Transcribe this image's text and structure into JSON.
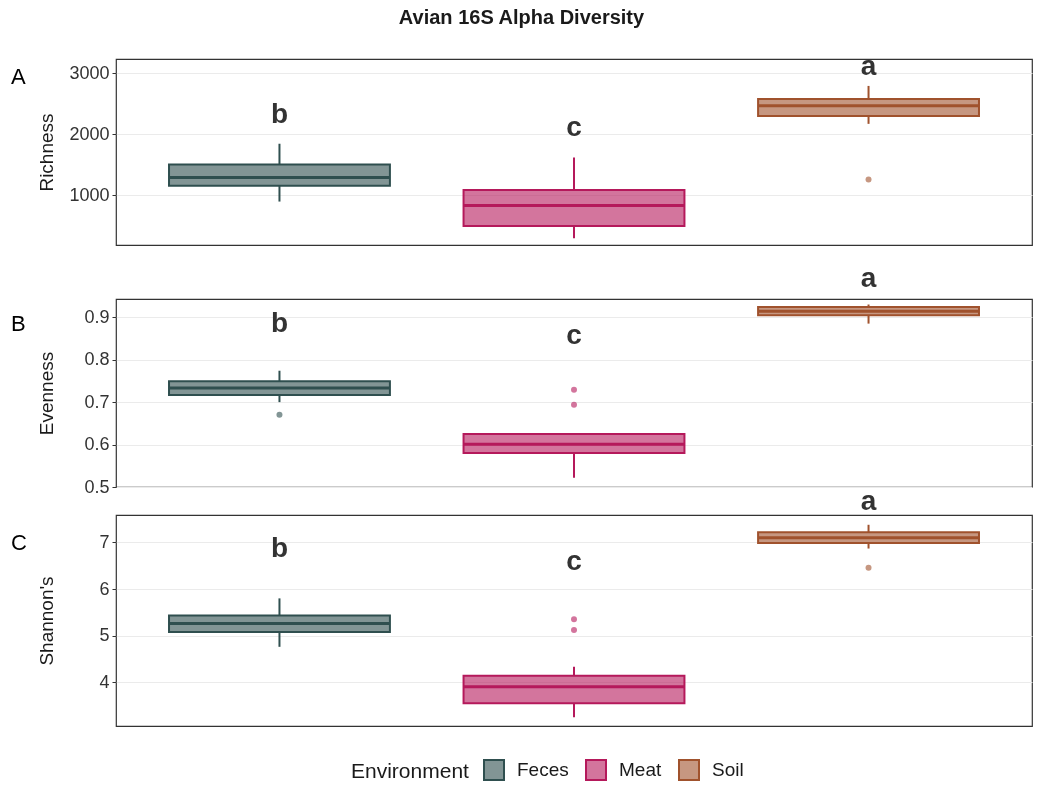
{
  "chart_data": [
    {
      "type": "box",
      "title": "Avian 16S Alpha Diversity",
      "ylabel": "Richness",
      "annotations": [
        "A",
        "b",
        "c",
        "a"
      ],
      "categories": [
        null,
        null,
        null
      ],
      "series": [
        {
          "color": "#2f4f4f",
          "boxes": [
            {
              "low": 900,
              "q1": 1160,
              "median": 1295,
              "q3": 1505,
              "high": 1845
            },
            null,
            null
          ]
        },
        {
          "color": "#b5195b",
          "boxes": [
            null,
            {
              "low": 300,
              "q1": 500,
              "median": 835,
              "q3": 1090,
              "high": 1620
            },
            null
          ]
        },
        {
          "color": "#a0522d",
          "boxes": [
            null,
            null,
            {
              "low": 2170,
              "q1": 2300,
              "median": 2465,
              "q3": 2575,
              "high": 2790,
              "outliers": [
                1260
              ]
            }
          ]
        }
      ],
      "ylim": [
        190,
        3230
      ],
      "yticks": [
        1000,
        2000,
        3000
      ],
      "grid": "y",
      "tick_labels": "y"
    },
    {
      "type": "box",
      "ylabel": "Evenness",
      "annotations": [
        "B",
        "b",
        "c",
        "a"
      ],
      "categories": [
        null,
        null,
        null
      ],
      "series": [
        {
          "color": "#2f4f4f",
          "boxes": [
            {
              "low": 0.7,
              "q1": 0.717,
              "median": 0.733,
              "q3": 0.749,
              "high": 0.774,
              "outliers": [
                0.67
              ]
            },
            null,
            null
          ]
        },
        {
          "color": "#b5195b",
          "boxes": [
            null,
            {
              "low": 0.522,
              "q1": 0.58,
              "median": 0.601,
              "q3": 0.625,
              "high": 0.625,
              "outliers": [
                0.694,
                0.729
              ]
            },
            null
          ]
        },
        {
          "color": "#a0522d",
          "boxes": [
            null,
            null,
            {
              "low": 0.885,
              "q1": 0.905,
              "median": 0.914,
              "q3": 0.924,
              "high": 0.93
            }
          ]
        }
      ],
      "ylim": [
        0.5,
        0.943
      ],
      "yticks": [
        0.5,
        0.6,
        0.7,
        0.8,
        0.9
      ],
      "grid": "y",
      "tick_labels": "y"
    },
    {
      "type": "box",
      "ylabel": "Shannon's",
      "annotations": [
        "C",
        "b",
        "c",
        "a"
      ],
      "categories": [
        null,
        null,
        null
      ],
      "series": [
        {
          "name": "Feces",
          "color": "#2f4f4f",
          "boxes": [
            {
              "low": 4.76,
              "q1": 5.08,
              "median": 5.26,
              "q3": 5.43,
              "high": 5.8
            },
            null,
            null
          ]
        },
        {
          "name": "Meat",
          "color": "#b5195b",
          "boxes": [
            null,
            {
              "low": 3.25,
              "q1": 3.55,
              "median": 3.9,
              "q3": 4.14,
              "high": 4.33,
              "outliers": [
                5.12,
                5.35
              ]
            },
            null
          ]
        },
        {
          "name": "Soil",
          "color": "#a0522d",
          "boxes": [
            null,
            null,
            {
              "low": 6.87,
              "q1": 6.99,
              "median": 7.1,
              "q3": 7.22,
              "high": 7.38,
              "outliers": [
                6.46
              ]
            }
          ]
        }
      ],
      "ylim": [
        3.06,
        7.59
      ],
      "yticks": [
        4,
        5,
        6,
        7
      ],
      "grid": "y",
      "tick_labels": "y",
      "legend": "bottom",
      "legend_title": "Environment"
    }
  ]
}
